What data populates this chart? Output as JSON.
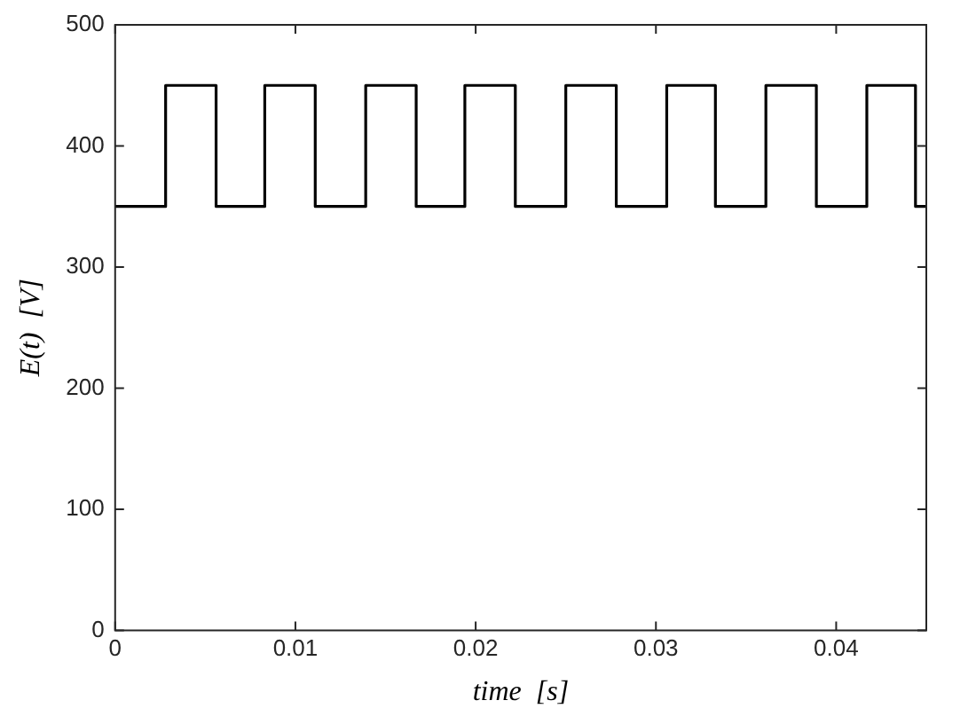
{
  "chart_data": {
    "type": "step",
    "xlabel": "time  [s]",
    "ylabel": "E(t)  [V]",
    "x": [
      0,
      0.0028,
      0.0056,
      0.0083,
      0.0111,
      0.0139,
      0.0167,
      0.0194,
      0.0222,
      0.025,
      0.0278,
      0.0306,
      0.0333,
      0.0361,
      0.0389,
      0.0417,
      0.0444,
      0.045
    ],
    "series": [
      {
        "color": "#000000",
        "values": [
          350,
          450,
          350,
          450,
          350,
          450,
          350,
          450,
          350,
          450,
          350,
          450,
          350,
          450,
          350,
          450,
          350,
          350
        ]
      }
    ],
    "xlim": [
      0,
      0.045
    ],
    "xticks": [
      0,
      0.01,
      0.02,
      0.03,
      0.04
    ],
    "ylim": [
      0,
      500
    ],
    "yticks": [
      0,
      100,
      200,
      300,
      400,
      500
    ],
    "grid": false,
    "legend": false,
    "marker": "none",
    "line_style": "solid"
  }
}
